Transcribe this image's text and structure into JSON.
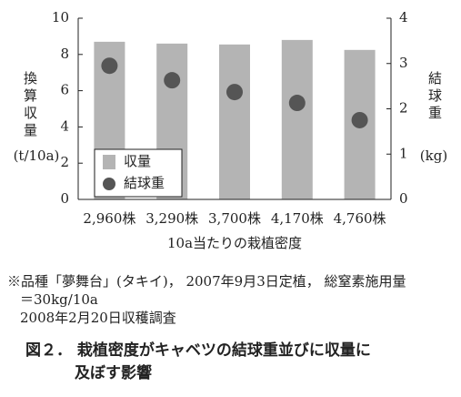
{
  "chart_data": {
    "type": "bar",
    "categories": [
      "2,960株",
      "3,290株",
      "3,700株",
      "4,170株",
      "4,760株"
    ],
    "series": [
      {
        "name": "収量",
        "type": "bar",
        "color": "#b4b4b4",
        "values": [
          8.7,
          8.6,
          8.55,
          8.8,
          8.25
        ]
      },
      {
        "name": "結球重",
        "type": "scatter",
        "axis": "y2",
        "color": "#555555",
        "values": [
          2.95,
          2.63,
          2.37,
          2.13,
          1.75
        ]
      }
    ],
    "ylim": [
      0,
      10
    ],
    "yticks": [
      0,
      2,
      4,
      6,
      8,
      10
    ],
    "y2lim": [
      0,
      4
    ],
    "y2ticks": [
      0,
      1,
      2,
      3,
      4
    ],
    "ylabel": "換算収量",
    "yunit": "(t/10a)",
    "y2label": "結球重",
    "y2unit": "(kg)",
    "xlabel": "10a当たりの栽植密度",
    "notes": [
      "※品種「夢舞台」(タキイ)， 2007年9月3日定植， 総窒素施用量",
      "＝30kg/10a",
      "2008年2月20日収穫調査"
    ],
    "title": [
      "図２． 栽植密度がキャベツの結球重並びに収量に",
      "及ぼす影響"
    ]
  }
}
